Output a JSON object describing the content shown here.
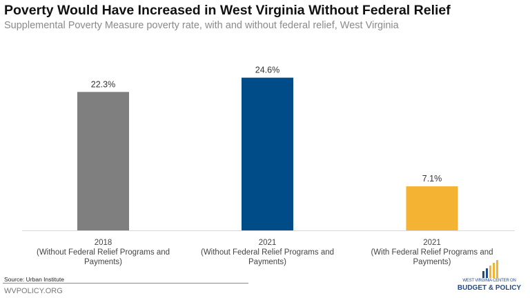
{
  "title": "Poverty Would Have Increased in West Virginia Without Federal Relief",
  "subtitle": "Supplemental Poverty Measure poverty rate, with and without federal relief, West Virginia",
  "chart_data": {
    "type": "bar",
    "categories": [
      "2018\n(Without Federal Relief Programs and Payments)",
      "2021\n(Without Federal Relief Programs and Payments)",
      "2021\n(With Federal Relief Programs and Payments)"
    ],
    "category_lines": [
      [
        "2018",
        "(Without Federal Relief Programs and",
        "Payments)"
      ],
      [
        "2021",
        "(Without Federal Relief Programs and",
        "Payments)"
      ],
      [
        "2021",
        "(With Federal Relief Programs and Payments)"
      ]
    ],
    "values": [
      22.3,
      24.6,
      7.1
    ],
    "data_labels": [
      "22.3%",
      "24.6%",
      "7.1%"
    ],
    "colors": [
      "#7f7f7f",
      "#004c88",
      "#f4b332"
    ],
    "unit": "%",
    "ylim": [
      0,
      30
    ],
    "grid": false
  },
  "footer": {
    "source": "Source: Urban Institute",
    "site": "WVPOLICY.ORG"
  },
  "logo": {
    "line1": "WEST VIRGINIA CENTER ON",
    "line2": "BUDGET & POLICY",
    "colors": [
      "#f4b332",
      "#1f4a8c"
    ]
  }
}
